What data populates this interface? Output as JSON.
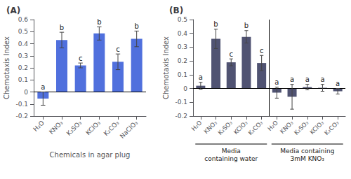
{
  "chart_data": [
    {
      "type": "bar",
      "title": "(A)",
      "xlabel": "Chemicals in agar plug",
      "ylabel": "Chemotaxis Index",
      "categories": [
        "H₂O",
        "KNO₃",
        "K₂SO₃",
        "KClO₃",
        "K₂CO₃",
        "NaClO₃"
      ],
      "values": [
        -0.055,
        0.43,
        0.22,
        0.485,
        0.25,
        0.44
      ],
      "errors": [
        0.055,
        0.065,
        0.02,
        0.055,
        0.065,
        0.065
      ],
      "letters": [
        "a",
        "b",
        "c",
        "b",
        "c",
        "b"
      ],
      "ylim": [
        -0.2,
        0.6
      ],
      "yticks": [
        -0.2,
        -0.1,
        0,
        0.1,
        0.2,
        0.3,
        0.4,
        0.5,
        0.6
      ],
      "grid": false
    },
    {
      "type": "bar",
      "title": "(B)",
      "ylabel": "Chemotaxis Index",
      "groups": [
        {
          "label": "Media\ncontaining water",
          "categories": [
            "H₂O",
            "KNO₃",
            "K₂SO₃",
            "KClO₃",
            "K₂CO₃"
          ],
          "values": [
            0.02,
            0.36,
            0.19,
            0.375,
            0.185
          ],
          "errors": [
            0.025,
            0.07,
            0.025,
            0.045,
            0.055
          ],
          "letters": [
            "a",
            "b",
            "c",
            "b",
            "c"
          ]
        },
        {
          "label": "Media containing\n3mM KNO₃",
          "categories": [
            "H₂O",
            "KNO₃",
            "K₂SO₃",
            "KClO₃",
            "K₂CO₃"
          ],
          "values": [
            -0.03,
            -0.06,
            0.01,
            0.005,
            -0.02
          ],
          "errors": [
            0.04,
            0.09,
            0.02,
            0.025,
            0.02
          ],
          "letters": [
            "a",
            "a",
            "a",
            "a",
            "a"
          ]
        }
      ],
      "ylim": [
        -0.2,
        0.5
      ],
      "yticks": [
        -0.2,
        -0.1,
        0,
        0.1,
        0.2,
        0.3,
        0.4,
        0.5
      ],
      "grid": false
    }
  ]
}
